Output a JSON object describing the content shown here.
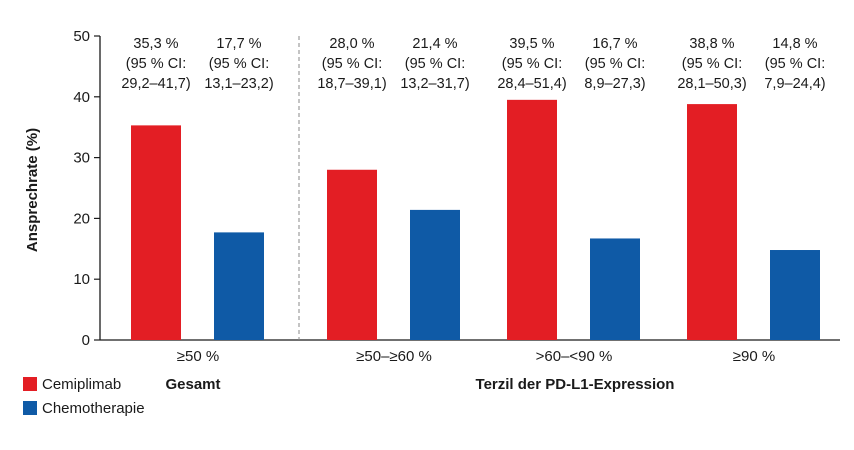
{
  "chart_data": {
    "type": "bar",
    "ylabel": "Ansprechrate (%)",
    "ylim": [
      0,
      50
    ],
    "yticks": [
      "0",
      "10",
      "20",
      "30",
      "40",
      "50"
    ],
    "categories": [
      "≥50 %",
      "≥50–≥60 %",
      ">60–<90 %",
      "≥90 %"
    ],
    "groups": [
      {
        "label": "Gesamt",
        "categories": [
          "≥50 %"
        ]
      },
      {
        "label": "Terzil der PD-L1-Expression",
        "categories": [
          "≥50–≥60 %",
          ">60–<90 %",
          "≥90 %"
        ]
      }
    ],
    "series": [
      {
        "name": "Cemiplimab",
        "color": "#e31e24",
        "values": [
          35.3,
          28.0,
          39.5,
          38.8
        ],
        "labels": [
          [
            "35,3 %",
            "(95 % CI:",
            "29,2–41,7)"
          ],
          [
            "28,0 %",
            "(95 % CI:",
            "18,7–39,1)"
          ],
          [
            "39,5 %",
            "(95 % CI:",
            "28,4–51,4)"
          ],
          [
            "38,8 %",
            "(95 % CI:",
            "28,1–50,3)"
          ]
        ]
      },
      {
        "name": "Chemotherapie",
        "color": "#0f5aa6",
        "values": [
          17.7,
          21.4,
          16.7,
          14.8
        ],
        "labels": [
          [
            "17,7 %",
            "(95 % CI:",
            "13,1–23,2)"
          ],
          [
            "21,4 %",
            "(95 % CI:",
            "13,2–31,7)"
          ],
          [
            "16,7 %",
            "(95 % CI:",
            "8,9–27,3)"
          ],
          [
            "14,8 %",
            "(95 % CI:",
            "7,9–24,4)"
          ]
        ]
      }
    ],
    "legend_position": "bottom-left"
  }
}
